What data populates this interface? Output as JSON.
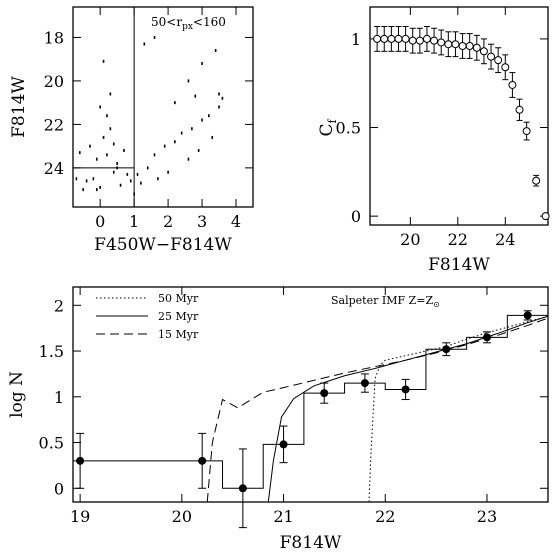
{
  "chart_data": [
    {
      "id": "cmd",
      "type": "scatter",
      "xlabel": "F450W−F814W",
      "ylabel": "F814W",
      "annotation": "50<r_px<160",
      "annotation_parts": [
        "50<r",
        "px",
        "<160"
      ],
      "xlim": [
        -0.8,
        4.5
      ],
      "ylim": [
        25.8,
        16.6
      ],
      "y_inverted": true,
      "xticks": [
        0,
        1,
        2,
        3,
        4
      ],
      "yticks": [
        18,
        20,
        22,
        24
      ],
      "xtick_labels": [
        "0",
        "1",
        "2",
        "3",
        "4"
      ],
      "ytick_labels": [
        "18",
        "20",
        "22",
        "24"
      ],
      "reference_lines": {
        "vertical_x": 1.0,
        "horizontal_y": 24.0,
        "horizontal_x_range": [
          -0.8,
          1.0
        ]
      },
      "series": [
        {
          "points": [
            [
              -0.1,
              23.6
            ],
            [
              0.2,
              23.4
            ],
            [
              0.4,
              24.2
            ],
            [
              -0.2,
              24.5
            ],
            [
              0.6,
              24.8
            ],
            [
              0.1,
              22.6
            ],
            [
              0.3,
              22.2
            ],
            [
              -0.3,
              23.0
            ],
            [
              0.5,
              23.8
            ],
            [
              0.8,
              24.3
            ],
            [
              0.0,
              24.9
            ],
            [
              -0.4,
              24.6
            ],
            [
              0.7,
              23.2
            ],
            [
              0.2,
              21.6
            ],
            [
              0.0,
              21.2
            ],
            [
              0.4,
              22.9
            ],
            [
              -0.1,
              25.0
            ],
            [
              0.9,
              24.6
            ],
            [
              1.1,
              24.3
            ],
            [
              1.4,
              24.0
            ],
            [
              1.6,
              23.4
            ],
            [
              1.9,
              23.0
            ],
            [
              2.2,
              22.8
            ],
            [
              2.4,
              22.4
            ],
            [
              2.7,
              22.2
            ],
            [
              3.0,
              21.8
            ],
            [
              3.2,
              21.6
            ],
            [
              3.5,
              21.2
            ],
            [
              3.6,
              20.8
            ],
            [
              1.2,
              24.7
            ],
            [
              1.7,
              24.5
            ],
            [
              2.0,
              24.2
            ],
            [
              2.6,
              23.6
            ],
            [
              2.9,
              23.2
            ],
            [
              3.3,
              22.6
            ],
            [
              1.3,
              18.3
            ],
            [
              1.6,
              18.0
            ],
            [
              2.6,
              20.0
            ],
            [
              3.0,
              19.2
            ],
            [
              3.4,
              18.6
            ],
            [
              3.5,
              20.6
            ],
            [
              -0.7,
              24.5
            ],
            [
              -0.5,
              25.0
            ],
            [
              -0.6,
              23.3
            ],
            [
              0.3,
              20.6
            ],
            [
              0.1,
              19.1
            ],
            [
              2.2,
              21.0
            ],
            [
              2.8,
              20.7
            ],
            [
              1.0,
              25.2
            ],
            [
              0.5,
              24.0
            ]
          ]
        }
      ]
    },
    {
      "id": "completeness",
      "type": "scatter",
      "xlabel": "F814W",
      "ylabel": "C_f",
      "ylabel_parts": [
        "C",
        "f"
      ],
      "xlim": [
        18.3,
        25.8
      ],
      "ylim": [
        -0.05,
        1.18
      ],
      "xticks": [
        20,
        22,
        24
      ],
      "yticks": [
        0,
        0.5,
        1
      ],
      "xtick_labels": [
        "20",
        "22",
        "24"
      ],
      "ytick_labels": [
        "0",
        "0.5",
        "1"
      ],
      "series": [
        {
          "x": [
            18.6,
            18.9,
            19.2,
            19.5,
            19.8,
            20.1,
            20.4,
            20.7,
            21.0,
            21.3,
            21.6,
            21.9,
            22.2,
            22.5,
            22.8,
            23.1,
            23.4,
            23.7,
            24.0,
            24.3,
            24.6,
            24.9,
            25.3,
            25.7
          ],
          "y": [
            1.0,
            1.0,
            1.0,
            1.0,
            1.0,
            0.99,
            0.99,
            1.0,
            0.99,
            0.98,
            0.97,
            0.97,
            0.96,
            0.96,
            0.95,
            0.93,
            0.9,
            0.88,
            0.84,
            0.74,
            0.6,
            0.48,
            0.2,
            0.0
          ],
          "err": [
            0.07,
            0.07,
            0.07,
            0.07,
            0.07,
            0.07,
            0.07,
            0.07,
            0.07,
            0.07,
            0.07,
            0.07,
            0.07,
            0.07,
            0.07,
            0.07,
            0.07,
            0.07,
            0.07,
            0.07,
            0.06,
            0.05,
            0.03,
            0.0
          ]
        }
      ]
    },
    {
      "id": "lf",
      "type": "line",
      "xlabel": "F814W",
      "ylabel": "log N",
      "annotation_parts": [
        "Salpeter IMF Z=Z",
        "⊙"
      ],
      "xlim": [
        18.93,
        23.6
      ],
      "ylim": [
        -0.15,
        2.2
      ],
      "xticks": [
        19,
        20,
        21,
        22,
        23
      ],
      "yticks": [
        0,
        0.5,
        1,
        1.5,
        2
      ],
      "xtick_labels": [
        "19",
        "20",
        "21",
        "22",
        "23"
      ],
      "ytick_labels": [
        "0",
        "0.5",
        "1",
        "1.5",
        "2"
      ],
      "legend": [
        {
          "label": "50 Myr",
          "style": "dotted"
        },
        {
          "label": "25 Myr",
          "style": "solid"
        },
        {
          "label": "15 Myr",
          "style": "dashed"
        }
      ],
      "observed": {
        "x": [
          19.0,
          20.2,
          20.6,
          21.0,
          21.4,
          21.8,
          22.2,
          22.6,
          23.0,
          23.4
        ],
        "y": [
          0.3,
          0.3,
          0.0,
          0.48,
          1.04,
          1.15,
          1.08,
          1.52,
          1.65,
          1.89
        ],
        "err": [
          0.3,
          0.3,
          0.43,
          0.2,
          0.11,
          0.1,
          0.11,
          0.07,
          0.06,
          0.05
        ],
        "bin_edges": [
          18.93,
          19.2,
          20.4,
          20.8,
          21.2,
          21.6,
          22.0,
          22.4,
          22.8,
          23.2,
          23.6
        ]
      },
      "models": [
        {
          "style": "dotted",
          "x": [
            21.84,
            21.86,
            21.9,
            21.95,
            22.0,
            22.2,
            22.4,
            22.6,
            22.8,
            23.0,
            23.2,
            23.4,
            23.6
          ],
          "y": [
            -0.15,
            0.4,
            1.2,
            1.35,
            1.4,
            1.45,
            1.5,
            1.55,
            1.63,
            1.7,
            1.76,
            1.82,
            1.88
          ]
        },
        {
          "style": "solid",
          "x": [
            20.85,
            20.9,
            20.98,
            21.1,
            21.3,
            21.6,
            21.9,
            22.2,
            22.5,
            22.8,
            23.1,
            23.4,
            23.6
          ],
          "y": [
            -0.15,
            0.3,
            0.78,
            0.98,
            1.12,
            1.23,
            1.31,
            1.4,
            1.49,
            1.58,
            1.69,
            1.81,
            1.88
          ]
        },
        {
          "style": "dashed",
          "x": [
            20.25,
            20.3,
            20.4,
            20.55,
            20.8,
            21.0,
            21.3,
            21.6,
            21.9,
            22.2,
            22.5,
            22.8,
            23.1,
            23.4,
            23.6
          ],
          "y": [
            -0.15,
            0.5,
            0.97,
            0.88,
            1.05,
            1.1,
            1.18,
            1.26,
            1.33,
            1.4,
            1.48,
            1.57,
            1.67,
            1.78,
            1.86
          ]
        }
      ]
    }
  ]
}
